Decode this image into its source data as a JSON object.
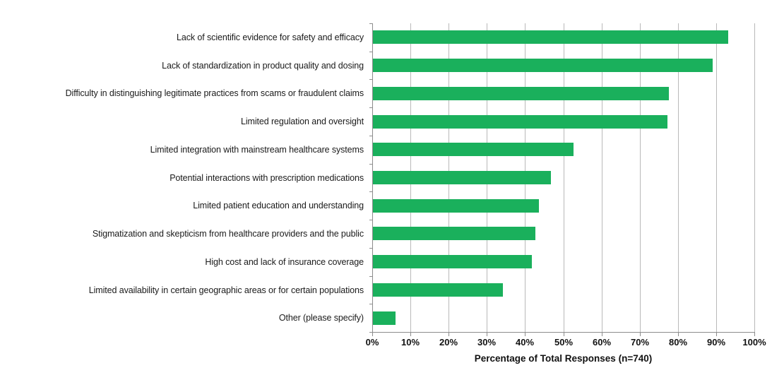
{
  "chart_data": {
    "type": "bar",
    "orientation": "horizontal",
    "title": "",
    "xlabel": "Percentage of Total Responses (n=740)",
    "ylabel": "",
    "categories": [
      "Lack of scientific evidence for safety and efficacy",
      "Lack of standardization in product quality and dosing",
      "Difficulty in distinguishing legitimate practices from scams or fraudulent claims",
      "Limited regulation and oversight",
      "Limited integration with mainstream healthcare systems",
      "Potential interactions with prescription medications",
      "Limited patient education and understanding",
      "Stigmatization and skepticism from healthcare providers and the public",
      "High cost and lack of insurance coverage",
      "Limited availability in certain geographic areas or for certain populations",
      "Other (please specify)"
    ],
    "values": [
      93,
      89,
      77.5,
      77,
      52.5,
      46.5,
      43.5,
      42.5,
      41.5,
      34,
      6
    ],
    "xlim": [
      0,
      100
    ],
    "x_tick_labels": [
      "0%",
      "10%",
      "20%",
      "30%",
      "40%",
      "50%",
      "60%",
      "70%",
      "80%",
      "90%",
      "100%"
    ],
    "x_tick_values": [
      0,
      10,
      20,
      30,
      40,
      50,
      60,
      70,
      80,
      90,
      100
    ],
    "grid": "vertical",
    "legend": "none",
    "colors": {
      "bar": "#1ab05c",
      "gridline": "#b9b9b9",
      "axis": "#8c8c8c",
      "text": "#111111"
    }
  }
}
